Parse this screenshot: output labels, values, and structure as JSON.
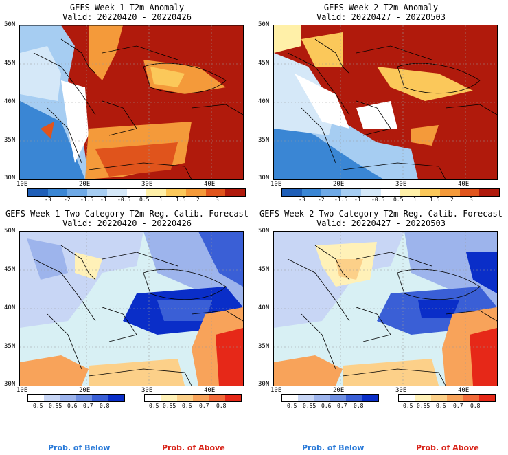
{
  "panels": [
    {
      "title": "GEFS Week-1 T2m Anomaly",
      "valid": "Valid: 20220420 - 20220426"
    },
    {
      "title": "GEFS Week-2 T2m Anomaly",
      "valid": "Valid: 20220427 - 20220503"
    },
    {
      "title": "GEFS Week-1 Two-Category T2m Reg. Calib. Forecast",
      "valid": "Valid: 20220420 - 20220426"
    },
    {
      "title": "GEFS Week-2 Two-Category T2m Reg. Calib. Forecast",
      "valid": "Valid: 20220427 - 20220503"
    }
  ],
  "lat_labels": [
    "50N",
    "45N",
    "40N",
    "35N",
    "30N"
  ],
  "lon_labels": [
    "10E",
    "20E",
    "30E",
    "40E"
  ],
  "anomaly_colorbar": {
    "labels": [
      "-3",
      "-2",
      "-1.5",
      "-1",
      "-0.5",
      "0.5",
      "1",
      "1.5",
      "2",
      "3"
    ],
    "colors": [
      "#1f5fb8",
      "#3a86d4",
      "#6ea9e6",
      "#a6cdf2",
      "#d5e8f8",
      "#ffffff",
      "#fff0a8",
      "#fbc85a",
      "#f49a3a",
      "#e0541c",
      "#b01a0c"
    ]
  },
  "prob_below": {
    "labels": [
      "0.5",
      "0.55",
      "0.6",
      "0.7",
      "0.8"
    ],
    "colors": [
      "#c8d6f5",
      "#9db4ec",
      "#6f8fe2",
      "#3a5fd6",
      "#0a2ec8"
    ]
  },
  "prob_above": {
    "labels": [
      "0.5",
      "0.55",
      "0.6",
      "0.7",
      "0.8"
    ],
    "colors": [
      "#fff1b8",
      "#fcd089",
      "#f8a35a",
      "#f26b3a",
      "#e62818"
    ]
  },
  "legend": {
    "below": "Prob. of Below",
    "above": "Prob. of Above"
  },
  "colors": {
    "below_label": "#2a7ad8",
    "above_label": "#d8241a",
    "sea_light": "#d8f0f4"
  }
}
